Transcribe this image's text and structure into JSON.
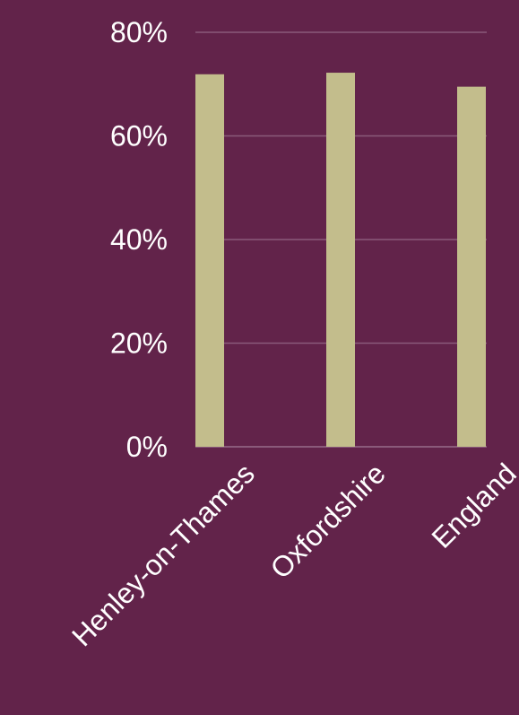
{
  "colors": {
    "background": "#62234a",
    "bar": "#c3bd8c",
    "gridline": "#8a5a7a",
    "text": "#ffffff"
  },
  "chart_data": {
    "type": "bar",
    "categories": [
      "Henley-on-Thames",
      "Oxfordshire",
      "England"
    ],
    "values": [
      71.9,
      72.2,
      69.5
    ],
    "title": "",
    "xlabel": "",
    "ylabel": "",
    "ylim": [
      0,
      80
    ],
    "yticks": [
      "0%",
      "20%",
      "40%",
      "60%",
      "80%"
    ],
    "grid": true,
    "legend": "none"
  }
}
